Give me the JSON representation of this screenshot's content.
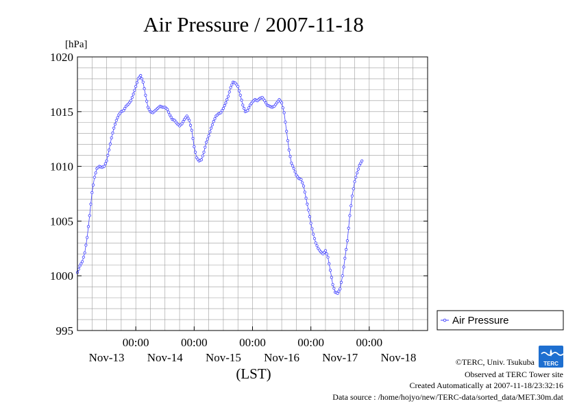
{
  "chart_data": {
    "type": "line",
    "title": "Air Pressure / 2007-11-18",
    "y_unit_label": "[hPa]",
    "xlabel": "(LST)",
    "ylabel": "",
    "ylim": [
      995,
      1020
    ],
    "y_ticks": [
      995,
      1000,
      1005,
      1010,
      1015,
      1020
    ],
    "y_tick_labels": [
      "995",
      "1000",
      "1005",
      "1010",
      "1015",
      "1020"
    ],
    "y_gridlines": [
      996,
      997,
      998,
      999,
      1000,
      1001,
      1002,
      1003,
      1004,
      1005,
      1006,
      1007,
      1008,
      1009,
      1010,
      1011,
      1012,
      1013,
      1014,
      1015,
      1016,
      1017,
      1018,
      1019
    ],
    "x_range_hours": [
      0,
      144
    ],
    "x_time_ticks": [
      {
        "hour": 24,
        "time_label": "00:00"
      },
      {
        "hour": 48,
        "time_label": "00:00"
      },
      {
        "hour": 72,
        "time_label": "00:00"
      },
      {
        "hour": 96,
        "time_label": "00:00"
      },
      {
        "hour": 120,
        "time_label": "00:00"
      }
    ],
    "x_day_labels": [
      {
        "hour": 12,
        "label": "Nov-13"
      },
      {
        "hour": 36,
        "label": "Nov-14"
      },
      {
        "hour": 60,
        "label": "Nov-15"
      },
      {
        "hour": 84,
        "label": "Nov-16"
      },
      {
        "hour": 108,
        "label": "Nov-17"
      },
      {
        "hour": 132,
        "label": "Nov-18"
      }
    ],
    "x_gridlines_hours": [
      6,
      12,
      18,
      24,
      30,
      36,
      42,
      48,
      54,
      60,
      66,
      72,
      78,
      84,
      90,
      96,
      102,
      108,
      114,
      120,
      126,
      132,
      138
    ],
    "grid": true,
    "legend_position": "right",
    "series": [
      {
        "name": "Air Pressure",
        "color": "#3b3bff",
        "marker": "circle",
        "keyframes": [
          [
            0,
            1000.3
          ],
          [
            1,
            1000.9
          ],
          [
            2,
            1001.3
          ],
          [
            3,
            1002.1
          ],
          [
            4,
            1003.5
          ],
          [
            5,
            1005.5
          ],
          [
            6,
            1007.6
          ],
          [
            7,
            1009.0
          ],
          [
            8,
            1009.8
          ],
          [
            9,
            1010.0
          ],
          [
            10,
            1009.9
          ],
          [
            11,
            1010.0
          ],
          [
            12,
            1010.5
          ],
          [
            13,
            1011.5
          ],
          [
            14,
            1012.6
          ],
          [
            15,
            1013.5
          ],
          [
            16,
            1014.2
          ],
          [
            17,
            1014.7
          ],
          [
            18,
            1015.0
          ],
          [
            19,
            1015.1
          ],
          [
            20,
            1015.5
          ],
          [
            21,
            1015.7
          ],
          [
            22,
            1016.0
          ],
          [
            23,
            1016.6
          ],
          [
            24,
            1017.3
          ],
          [
            25,
            1018.0
          ],
          [
            26,
            1018.3
          ],
          [
            27,
            1017.7
          ],
          [
            28,
            1016.5
          ],
          [
            29,
            1015.4
          ],
          [
            30,
            1015.0
          ],
          [
            31,
            1014.9
          ],
          [
            32,
            1015.1
          ],
          [
            33,
            1015.3
          ],
          [
            34,
            1015.5
          ],
          [
            35,
            1015.4
          ],
          [
            36,
            1015.4
          ],
          [
            37,
            1015.2
          ],
          [
            38,
            1014.7
          ],
          [
            39,
            1014.3
          ],
          [
            40,
            1014.2
          ],
          [
            41,
            1013.9
          ],
          [
            42,
            1013.7
          ],
          [
            43,
            1013.9
          ],
          [
            44,
            1014.3
          ],
          [
            45,
            1014.6
          ],
          [
            46,
            1014.2
          ],
          [
            47,
            1013.3
          ],
          [
            48,
            1011.8
          ],
          [
            49,
            1010.8
          ],
          [
            50,
            1010.5
          ],
          [
            51,
            1010.6
          ],
          [
            52,
            1011.3
          ],
          [
            53,
            1012.2
          ],
          [
            54,
            1012.8
          ],
          [
            55,
            1013.5
          ],
          [
            56,
            1014.1
          ],
          [
            57,
            1014.6
          ],
          [
            58,
            1014.8
          ],
          [
            59,
            1014.9
          ],
          [
            60,
            1015.3
          ],
          [
            61,
            1015.8
          ],
          [
            62,
            1016.4
          ],
          [
            63,
            1017.2
          ],
          [
            64,
            1017.7
          ],
          [
            65,
            1017.6
          ],
          [
            66,
            1017.3
          ],
          [
            67,
            1016.5
          ],
          [
            68,
            1015.6
          ],
          [
            69,
            1015.0
          ],
          [
            70,
            1015.1
          ],
          [
            71,
            1015.6
          ],
          [
            72,
            1015.9
          ],
          [
            73,
            1016.1
          ],
          [
            74,
            1016.0
          ],
          [
            75,
            1016.2
          ],
          [
            76,
            1016.3
          ],
          [
            77,
            1016.0
          ],
          [
            78,
            1015.6
          ],
          [
            79,
            1015.5
          ],
          [
            80,
            1015.4
          ],
          [
            81,
            1015.5
          ],
          [
            82,
            1015.8
          ],
          [
            83,
            1016.1
          ],
          [
            84,
            1015.8
          ],
          [
            85,
            1014.9
          ],
          [
            86,
            1013.2
          ],
          [
            87,
            1011.5
          ],
          [
            88,
            1010.3
          ],
          [
            89,
            1009.8
          ],
          [
            90,
            1009.2
          ],
          [
            91,
            1008.9
          ],
          [
            92,
            1008.8
          ],
          [
            93,
            1008.2
          ],
          [
            94,
            1007.1
          ],
          [
            95,
            1006.0
          ],
          [
            96,
            1004.8
          ],
          [
            97,
            1003.8
          ],
          [
            98,
            1003.0
          ],
          [
            99,
            1002.5
          ],
          [
            100,
            1002.2
          ],
          [
            101,
            1002.0
          ],
          [
            102,
            1002.3
          ],
          [
            103,
            1001.7
          ],
          [
            104,
            1000.5
          ],
          [
            105,
            999.2
          ],
          [
            106,
            998.5
          ],
          [
            107,
            998.4
          ],
          [
            108,
            998.8
          ],
          [
            109,
            1000.0
          ],
          [
            110,
            1001.6
          ],
          [
            111,
            1003.2
          ],
          [
            112,
            1005.5
          ],
          [
            113,
            1007.3
          ],
          [
            114,
            1008.6
          ],
          [
            115,
            1009.4
          ],
          [
            116,
            1010.1
          ],
          [
            117,
            1010.5
          ]
        ]
      }
    ]
  },
  "legend": {
    "label": "Air Pressure"
  },
  "footer": {
    "credit": "©TERC, Univ. Tsukuba",
    "observed": "Observed at TERC Tower site",
    "created": "Created Automatically at 2007-11-18/23:32:16",
    "source": "Data source : /home/hojyo/new/TERC-data/sorted_data/MET.30m.dat"
  },
  "logo": {
    "text": "TERC",
    "color": "#1e6fd0"
  }
}
